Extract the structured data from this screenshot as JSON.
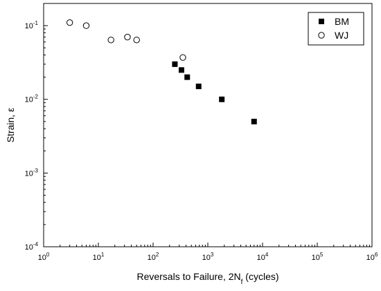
{
  "chart_data": {
    "type": "scatter",
    "xlabel": "Reversals to Failure, 2N",
    "xlabel_sub": "f",
    "xlabel_tail": " (cycles)",
    "ylabel": "Strain, ε",
    "x_scale": "log",
    "y_scale": "log",
    "xlim": [
      1,
      1000000
    ],
    "ylim": [
      0.0001,
      0.2
    ],
    "grid": false,
    "legend_position": "top-right",
    "x_ticks": [
      {
        "value": 1,
        "base": "10",
        "exp": "0"
      },
      {
        "value": 10,
        "base": "10",
        "exp": "1"
      },
      {
        "value": 100,
        "base": "10",
        "exp": "2"
      },
      {
        "value": 1000,
        "base": "10",
        "exp": "3"
      },
      {
        "value": 10000,
        "base": "10",
        "exp": "4"
      },
      {
        "value": 100000,
        "base": "10",
        "exp": "5"
      },
      {
        "value": 1000000,
        "base": "10",
        "exp": "6"
      }
    ],
    "y_ticks": [
      {
        "value": 0.0001,
        "base": "10",
        "exp": "-4"
      },
      {
        "value": 0.001,
        "base": "10",
        "exp": "-3"
      },
      {
        "value": 0.01,
        "base": "10",
        "exp": "-2"
      },
      {
        "value": 0.1,
        "base": "10",
        "exp": "-1"
      }
    ],
    "series": [
      {
        "name": "BM",
        "marker": "filled-square",
        "color": "#000000",
        "points": [
          {
            "x": 250,
            "y": 0.03
          },
          {
            "x": 330,
            "y": 0.025
          },
          {
            "x": 420,
            "y": 0.02
          },
          {
            "x": 680,
            "y": 0.015
          },
          {
            "x": 1800,
            "y": 0.01
          },
          {
            "x": 7000,
            "y": 0.005
          }
        ]
      },
      {
        "name": "WJ",
        "marker": "open-circle",
        "color": "#000000",
        "points": [
          {
            "x": 3,
            "y": 0.11
          },
          {
            "x": 6,
            "y": 0.1
          },
          {
            "x": 17,
            "y": 0.064
          },
          {
            "x": 34,
            "y": 0.07
          },
          {
            "x": 50,
            "y": 0.064
          },
          {
            "x": 350,
            "y": 0.037
          }
        ]
      }
    ]
  }
}
